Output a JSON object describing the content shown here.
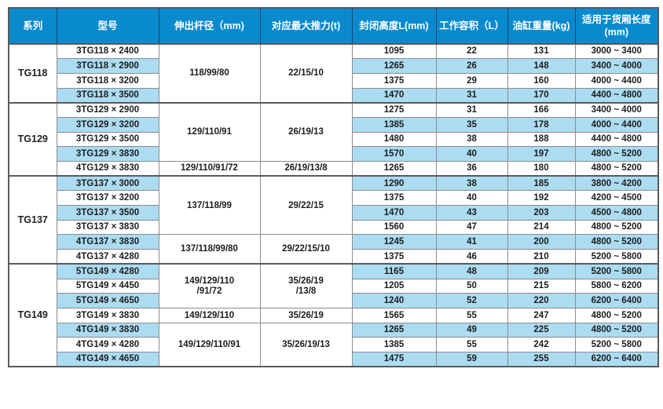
{
  "colors": {
    "header_bg": "#0a8ace",
    "header_text": "#ffffff",
    "stripe_blue": "#abdcf2",
    "row_white": "#ffffff",
    "grid_border": "#8c8c8c",
    "outer_border": "#5a5a5a",
    "body_text": "#1d1d1d"
  },
  "table": {
    "columns": [
      "系列",
      "型号",
      "伸出杆径（mm)",
      "对应最大推力(t)",
      "封闭高度L(mm)",
      "工作容积（L）",
      "油缸重量(kg)",
      "适用于货厢长度\n(mm)"
    ],
    "groups": [
      {
        "series": "TG118",
        "spec_blocks": [
          {
            "rod": "118/99/80",
            "thrust": "22/15/10",
            "row_count": 4
          }
        ],
        "rows": [
          {
            "model": "3TG118 × 2400",
            "closed_height": "1095",
            "working_volume": "22",
            "weight": "131",
            "box_length": "3000 ~ 3400"
          },
          {
            "model": "3TG118 × 2900",
            "closed_height": "1265",
            "working_volume": "26",
            "weight": "148",
            "box_length": "3400 ~ 4000"
          },
          {
            "model": "3TG118 × 3200",
            "closed_height": "1375",
            "working_volume": "29",
            "weight": "160",
            "box_length": "4000 ~ 4400"
          },
          {
            "model": "3TG118 × 3500",
            "closed_height": "1470",
            "working_volume": "31",
            "weight": "170",
            "box_length": "4400 ~ 4800"
          }
        ]
      },
      {
        "series": "TG129",
        "spec_blocks": [
          {
            "rod": "129/110/91",
            "thrust": "26/19/13",
            "row_count": 4
          },
          {
            "rod": "129/110/91/72",
            "thrust": "26/19/13/8",
            "row_count": 1
          }
        ],
        "rows": [
          {
            "model": "3TG129 × 2900",
            "closed_height": "1275",
            "working_volume": "31",
            "weight": "166",
            "box_length": "3400 ~ 4000"
          },
          {
            "model": "3TG129 × 3200",
            "closed_height": "1385",
            "working_volume": "35",
            "weight": "178",
            "box_length": "4000 ~ 4400"
          },
          {
            "model": "3TG129 × 3500",
            "closed_height": "1480",
            "working_volume": "38",
            "weight": "188",
            "box_length": "4400 ~ 4800"
          },
          {
            "model": "3TG129 × 3830",
            "closed_height": "1570",
            "working_volume": "40",
            "weight": "197",
            "box_length": "4800 ~ 5200"
          },
          {
            "model": "4TG129 × 3830",
            "closed_height": "1265",
            "working_volume": "36",
            "weight": "180",
            "box_length": "4800 ~ 5200"
          }
        ]
      },
      {
        "series": "TG137",
        "spec_blocks": [
          {
            "rod": "137/118/99",
            "thrust": "29/22/15",
            "row_count": 4
          },
          {
            "rod": "137/118/99/80",
            "thrust": "29/22/15/10",
            "row_count": 2
          }
        ],
        "rows": [
          {
            "model": "3TG137 × 3000",
            "closed_height": "1290",
            "working_volume": "38",
            "weight": "185",
            "box_length": "3800 ~ 4200"
          },
          {
            "model": "3TG137 × 3200",
            "closed_height": "1375",
            "working_volume": "40",
            "weight": "192",
            "box_length": "4200 ~ 4500"
          },
          {
            "model": "3TG137 × 3500",
            "closed_height": "1470",
            "working_volume": "43",
            "weight": "203",
            "box_length": "4500 ~ 4800"
          },
          {
            "model": "3TG137 × 3830",
            "closed_height": "1560",
            "working_volume": "47",
            "weight": "214",
            "box_length": "4800 ~ 5200"
          },
          {
            "model": "4TG137 × 3830",
            "closed_height": "1245",
            "working_volume": "41",
            "weight": "200",
            "box_length": "4800 ~ 5200"
          },
          {
            "model": "4TG137 × 4280",
            "closed_height": "1375",
            "working_volume": "46",
            "weight": "210",
            "box_length": "5200 ~ 5800"
          }
        ]
      },
      {
        "series": "TG149",
        "spec_blocks": [
          {
            "rod": "149/129/110\n/91/72",
            "thrust": "35/26/19\n/13/8",
            "row_count": 3
          },
          {
            "rod": "149/129/110",
            "thrust": "35/26/19",
            "row_count": 1
          },
          {
            "rod": "149/129/110/91",
            "thrust": "35/26/19/13",
            "row_count": 3
          }
        ],
        "rows": [
          {
            "model": "5TG149 × 4280",
            "closed_height": "1165",
            "working_volume": "48",
            "weight": "209",
            "box_length": "5200 ~ 5800"
          },
          {
            "model": "5TG149 × 4450",
            "closed_height": "1205",
            "working_volume": "50",
            "weight": "215",
            "box_length": "5800 ~ 6200"
          },
          {
            "model": "5TG149 × 4650",
            "closed_height": "1240",
            "working_volume": "52",
            "weight": "220",
            "box_length": "6200 ~ 6400"
          },
          {
            "model": "3TG149 × 3830",
            "closed_height": "1565",
            "working_volume": "55",
            "weight": "247",
            "box_length": "4800 ~ 5200"
          },
          {
            "model": "4TG149 × 3830",
            "closed_height": "1265",
            "working_volume": "49",
            "weight": "225",
            "box_length": "4800 ~ 5200"
          },
          {
            "model": "4TG149 × 4280",
            "closed_height": "1385",
            "working_volume": "55",
            "weight": "242",
            "box_length": "5200 ~ 5800"
          },
          {
            "model": "4TG149 × 4650",
            "closed_height": "1475",
            "working_volume": "59",
            "weight": "255",
            "box_length": "6200 ~ 6400"
          }
        ]
      }
    ]
  }
}
